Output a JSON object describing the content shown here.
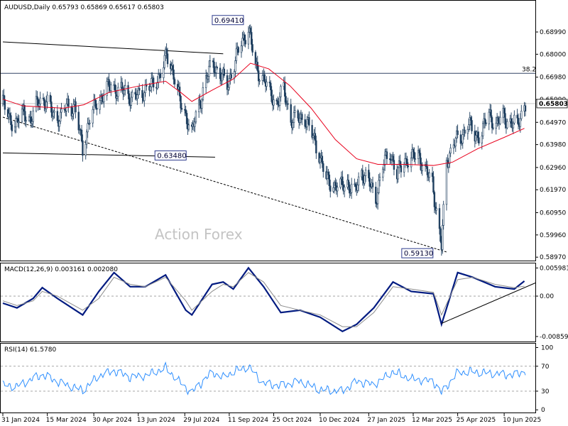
{
  "chart_data": [
    {
      "type": "candlestick",
      "panel": "price",
      "header": "AUDUSD,Daily  0.65793 0.65869 0.65617 0.65803",
      "watermark": "Action Forex",
      "ylim": [
        0.5885,
        0.7035
      ],
      "y_ticks": [
        "0.68990",
        "0.68000",
        "0.66980",
        "0.65990",
        "0.64970",
        "0.63980",
        "0.62960",
        "0.61970",
        "0.60950",
        "0.59960",
        "0.58970"
      ],
      "current_price": 0.65803,
      "current_price_label": "0.65803",
      "fib_level": {
        "label": "38.2",
        "price": 0.6715
      },
      "annotations": [
        {
          "label": "0.69410",
          "date": "2024-09-30",
          "price": 0.6941
        },
        {
          "label": "0.63480",
          "date": "2024-08-05",
          "price": 0.6348
        },
        {
          "label": "0.59130",
          "date": "2025-04-09",
          "price": 0.5913
        }
      ],
      "trendlines": [
        {
          "style": "solid",
          "from": {
            "date": "2024-01-31",
            "price": 0.6855
          },
          "to": {
            "date": "2024-09-05",
            "price": 0.6802
          }
        },
        {
          "style": "solid",
          "from": {
            "date": "2024-01-31",
            "price": 0.6361
          },
          "to": {
            "date": "2024-08-28",
            "price": 0.6342
          }
        },
        {
          "style": "dashed",
          "from": {
            "date": "2024-01-31",
            "price": 0.652
          },
          "to": {
            "date": "2025-04-14",
            "price": 0.592
          }
        }
      ],
      "moving_average": {
        "color": "#e8001c",
        "points": [
          [
            "2024-01-31",
            0.66
          ],
          [
            "2024-02-20",
            0.657
          ],
          [
            "2024-03-10",
            0.6565
          ],
          [
            "2024-03-31",
            0.656
          ],
          [
            "2024-04-20",
            0.6575
          ],
          [
            "2024-05-15",
            0.663
          ],
          [
            "2024-06-15",
            0.666
          ],
          [
            "2024-07-10",
            0.668
          ],
          [
            "2024-07-25",
            0.663
          ],
          [
            "2024-08-05",
            0.659
          ],
          [
            "2024-08-25",
            0.664
          ],
          [
            "2024-09-15",
            0.669
          ],
          [
            "2024-10-02",
            0.676
          ],
          [
            "2024-10-20",
            0.6735
          ],
          [
            "2024-11-10",
            0.666
          ],
          [
            "2024-12-01",
            0.656
          ],
          [
            "2024-12-25",
            0.642
          ],
          [
            "2025-01-15",
            0.6335
          ],
          [
            "2025-02-05",
            0.631
          ],
          [
            "2025-03-05",
            0.631
          ],
          [
            "2025-04-01",
            0.6305
          ],
          [
            "2025-04-20",
            0.632
          ],
          [
            "2025-05-15",
            0.638
          ],
          [
            "2025-06-10",
            0.643
          ],
          [
            "2025-06-30",
            0.647
          ]
        ]
      },
      "close_path": [
        [
          "2024-01-31",
          0.658
        ],
        [
          "2024-02-07",
          0.651
        ],
        [
          "2024-02-14",
          0.649
        ],
        [
          "2024-02-21",
          0.655
        ],
        [
          "2024-02-28",
          0.65
        ],
        [
          "2024-03-07",
          0.661
        ],
        [
          "2024-03-14",
          0.658
        ],
        [
          "2024-03-21",
          0.654
        ],
        [
          "2024-03-28",
          0.651
        ],
        [
          "2024-04-04",
          0.658
        ],
        [
          "2024-04-11",
          0.656
        ],
        [
          "2024-04-19",
          0.6385
        ],
        [
          "2024-04-26",
          0.651
        ],
        [
          "2024-05-03",
          0.659
        ],
        [
          "2024-05-10",
          0.662
        ],
        [
          "2024-05-17",
          0.667
        ],
        [
          "2024-05-24",
          0.663
        ],
        [
          "2024-05-31",
          0.664
        ],
        [
          "2024-06-07",
          0.66
        ],
        [
          "2024-06-14",
          0.662
        ],
        [
          "2024-06-21",
          0.665
        ],
        [
          "2024-06-28",
          0.666
        ],
        [
          "2024-07-05",
          0.672
        ],
        [
          "2024-07-11",
          0.679
        ],
        [
          "2024-07-18",
          0.672
        ],
        [
          "2024-07-25",
          0.657
        ],
        [
          "2024-08-01",
          0.651
        ],
        [
          "2024-08-05",
          0.645
        ],
        [
          "2024-08-12",
          0.657
        ],
        [
          "2024-08-19",
          0.669
        ],
        [
          "2024-08-26",
          0.676
        ],
        [
          "2024-09-02",
          0.671
        ],
        [
          "2024-09-09",
          0.666
        ],
        [
          "2024-09-16",
          0.676
        ],
        [
          "2024-09-23",
          0.685
        ],
        [
          "2024-09-30",
          0.692
        ],
        [
          "2024-10-07",
          0.674
        ],
        [
          "2024-10-14",
          0.67
        ],
        [
          "2024-10-21",
          0.663
        ],
        [
          "2024-10-28",
          0.658
        ],
        [
          "2024-11-04",
          0.664
        ],
        [
          "2024-11-11",
          0.651
        ],
        [
          "2024-11-18",
          0.651
        ],
        [
          "2024-11-25",
          0.652
        ],
        [
          "2024-12-02",
          0.644
        ],
        [
          "2024-12-09",
          0.636
        ],
        [
          "2024-12-16",
          0.624
        ],
        [
          "2024-12-23",
          0.622
        ],
        [
          "2024-12-30",
          0.621
        ],
        [
          "2025-01-06",
          0.623
        ],
        [
          "2025-01-13",
          0.618
        ],
        [
          "2025-01-20",
          0.628
        ],
        [
          "2025-01-27",
          0.623
        ],
        [
          "2025-02-03",
          0.616
        ],
        [
          "2025-02-10",
          0.63
        ],
        [
          "2025-02-17",
          0.637
        ],
        [
          "2025-02-24",
          0.626
        ],
        [
          "2025-03-03",
          0.633
        ],
        [
          "2025-03-10",
          0.633
        ],
        [
          "2025-03-17",
          0.636
        ],
        [
          "2025-03-24",
          0.628
        ],
        [
          "2025-03-31",
          0.623
        ],
        [
          "2025-04-09",
          0.594
        ],
        [
          "2025-04-14",
          0.632
        ],
        [
          "2025-04-21",
          0.641
        ],
        [
          "2025-04-28",
          0.642
        ],
        [
          "2025-05-05",
          0.65
        ],
        [
          "2025-05-12",
          0.643
        ],
        [
          "2025-05-19",
          0.646
        ],
        [
          "2025-05-26",
          0.653
        ],
        [
          "2025-06-02",
          0.649
        ],
        [
          "2025-06-09",
          0.652
        ],
        [
          "2025-06-16",
          0.65
        ],
        [
          "2025-06-23",
          0.648
        ],
        [
          "2025-06-30",
          0.658
        ]
      ]
    },
    {
      "type": "line",
      "panel": "macd",
      "header": "MACD(12,26,9) 0.003161 0.002080",
      "ylim": [
        -0.0095,
        0.0068
      ],
      "y_ticks": [
        "0.005981",
        "0.00",
        "-0.00859"
      ],
      "series": [
        {
          "color": "#001a80",
          "points": [
            [
              "2024-01-31",
              -0.0015
            ],
            [
              "2024-02-14",
              -0.0025
            ],
            [
              "2024-03-01",
              -0.0005
            ],
            [
              "2024-03-10",
              0.0018
            ],
            [
              "2024-03-25",
              -0.0005
            ],
            [
              "2024-04-19",
              -0.004
            ],
            [
              "2024-05-05",
              0.001
            ],
            [
              "2024-05-20",
              0.005
            ],
            [
              "2024-06-05",
              0.002
            ],
            [
              "2024-06-20",
              0.002
            ],
            [
              "2024-07-10",
              0.0045
            ],
            [
              "2024-07-30",
              -0.003
            ],
            [
              "2024-08-05",
              -0.004
            ],
            [
              "2024-08-25",
              0.0025
            ],
            [
              "2024-09-05",
              0.003
            ],
            [
              "2024-09-15",
              0.0015
            ],
            [
              "2024-09-30",
              0.006
            ],
            [
              "2024-10-15",
              0.002
            ],
            [
              "2024-11-01",
              -0.0035
            ],
            [
              "2024-11-20",
              -0.003
            ],
            [
              "2024-12-10",
              -0.0045
            ],
            [
              "2025-01-01",
              -0.0075
            ],
            [
              "2025-01-15",
              -0.006
            ],
            [
              "2025-02-01",
              -0.0025
            ],
            [
              "2025-02-20",
              0.003
            ],
            [
              "2025-03-10",
              0.001
            ],
            [
              "2025-04-01",
              0.0005
            ],
            [
              "2025-04-09",
              -0.006
            ],
            [
              "2025-04-25",
              0.005
            ],
            [
              "2025-05-10",
              0.004
            ],
            [
              "2025-06-01",
              0.002
            ],
            [
              "2025-06-20",
              0.0015
            ],
            [
              "2025-06-30",
              0.0032
            ]
          ]
        },
        {
          "color": "#8c8c8c",
          "points": [
            [
              "2024-01-31",
              -0.001
            ],
            [
              "2024-02-14",
              -0.002
            ],
            [
              "2024-03-01",
              -0.001
            ],
            [
              "2024-03-10",
              0.001
            ],
            [
              "2024-03-25",
              0.0
            ],
            [
              "2024-04-19",
              -0.003
            ],
            [
              "2024-05-05",
              -0.0005
            ],
            [
              "2024-05-20",
              0.004
            ],
            [
              "2024-06-05",
              0.0025
            ],
            [
              "2024-06-20",
              0.002
            ],
            [
              "2024-07-10",
              0.004
            ],
            [
              "2024-07-30",
              -0.001
            ],
            [
              "2024-08-05",
              -0.003
            ],
            [
              "2024-08-25",
              0.001
            ],
            [
              "2024-09-05",
              0.0025
            ],
            [
              "2024-09-15",
              0.002
            ],
            [
              "2024-09-30",
              0.005
            ],
            [
              "2024-10-15",
              0.003
            ],
            [
              "2024-11-01",
              -0.002
            ],
            [
              "2024-11-20",
              -0.003
            ],
            [
              "2024-12-10",
              -0.004
            ],
            [
              "2025-01-01",
              -0.0065
            ],
            [
              "2025-01-15",
              -0.0065
            ],
            [
              "2025-02-01",
              -0.0035
            ],
            [
              "2025-02-20",
              0.002
            ],
            [
              "2025-03-10",
              0.0015
            ],
            [
              "2025-04-01",
              0.0008
            ],
            [
              "2025-04-09",
              -0.004
            ],
            [
              "2025-04-25",
              0.0035
            ],
            [
              "2025-05-10",
              0.004
            ],
            [
              "2025-06-01",
              0.0025
            ],
            [
              "2025-06-20",
              0.0018
            ],
            [
              "2025-06-30",
              0.0021
            ]
          ]
        }
      ],
      "trendline": {
        "from": {
          "date": "2025-04-09",
          "value": -0.0058
        },
        "to": {
          "date": "2025-07-01",
          "value": 0.0028
        }
      }
    },
    {
      "type": "line",
      "panel": "rsi",
      "header": "RSI(14) 61.5780",
      "ylim": [
        -2,
        104
      ],
      "y_ticks": [
        "100",
        "70",
        "30",
        "0"
      ],
      "guide_levels": [
        70,
        30
      ],
      "series": [
        {
          "color": "#2e8fff",
          "points": [
            [
              "2024-01-31",
              40
            ],
            [
              "2024-02-14",
              38
            ],
            [
              "2024-03-01",
              50
            ],
            [
              "2024-03-10",
              56
            ],
            [
              "2024-03-25",
              45
            ],
            [
              "2024-04-19",
              32
            ],
            [
              "2024-05-05",
              55
            ],
            [
              "2024-05-20",
              62
            ],
            [
              "2024-06-05",
              52
            ],
            [
              "2024-06-20",
              55
            ],
            [
              "2024-07-10",
              68
            ],
            [
              "2024-07-30",
              35
            ],
            [
              "2024-08-05",
              28
            ],
            [
              "2024-08-25",
              60
            ],
            [
              "2024-09-05",
              52
            ],
            [
              "2024-09-15",
              62
            ],
            [
              "2024-09-30",
              70
            ],
            [
              "2024-10-15",
              42
            ],
            [
              "2024-11-01",
              38
            ],
            [
              "2024-11-20",
              46
            ],
            [
              "2024-12-10",
              33
            ],
            [
              "2025-01-01",
              30
            ],
            [
              "2025-01-15",
              45
            ],
            [
              "2025-02-01",
              40
            ],
            [
              "2025-02-20",
              62
            ],
            [
              "2025-03-10",
              50
            ],
            [
              "2025-04-01",
              45
            ],
            [
              "2025-04-09",
              27
            ],
            [
              "2025-04-25",
              60
            ],
            [
              "2025-05-10",
              62
            ],
            [
              "2025-06-01",
              58
            ],
            [
              "2025-06-20",
              55
            ],
            [
              "2025-06-30",
              61.6
            ]
          ]
        }
      ]
    }
  ],
  "x_axis_labels": [
    "31 Jan 2024",
    "15 Mar 2024",
    "30 Apr 2024",
    "13 Jun 2024",
    "29 Jul 2024",
    "11 Sep 2024",
    "25 Oct 2024",
    "10 Dec 2024",
    "27 Jan 2025",
    "12 Mar 2025",
    "25 Apr 2025",
    "10 Jun 2025"
  ]
}
